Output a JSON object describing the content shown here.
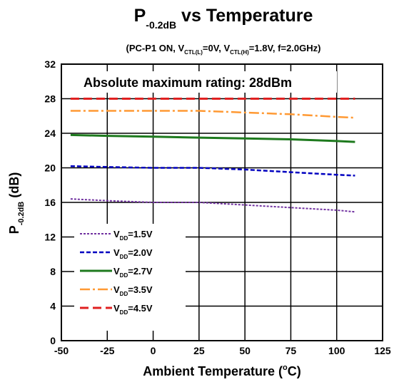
{
  "chart_data": {
    "type": "line",
    "title": {
      "main": "P",
      "sub": "-0.2dB",
      "rest": " vs Temperature"
    },
    "subtitle": {
      "p1": "(PC-P1 ON, V",
      "s1": "CTL(L)",
      "p2": "=0V, V",
      "s2": "CTL(H)",
      "p3": "=1.8V, f=2.0GHz)"
    },
    "annotation": "Absolute maximum rating: 28dBm",
    "xlabel": {
      "main": "Ambient Temperature  (",
      "sup": "o",
      "rest": "C)"
    },
    "ylabel": {
      "main": "P",
      "sub": "-0.2dB",
      "rest": " (dB)"
    },
    "xlim": [
      -50,
      125
    ],
    "ylim": [
      0,
      32
    ],
    "xticks": [
      "-50",
      "-25",
      "0",
      "25",
      "50",
      "75",
      "100",
      "125"
    ],
    "yticks": [
      "0",
      "4",
      "8",
      "12",
      "16",
      "20",
      "24",
      "28",
      "32"
    ],
    "grid": true,
    "legend_position": "bottom-left",
    "series": [
      {
        "name": "V",
        "sub": "DD",
        "suffix": "=1.5V",
        "color": "#7030A0",
        "dash": "3,2",
        "width": 2,
        "x": [
          -45,
          -25,
          0,
          25,
          50,
          75,
          100,
          110
        ],
        "y": [
          16.4,
          16.2,
          16.0,
          16.0,
          15.7,
          15.4,
          15.1,
          14.9
        ]
      },
      {
        "name": "V",
        "sub": "DD",
        "suffix": "=2.0V",
        "color": "#0000C0",
        "dash": "6,3",
        "width": 2.5,
        "x": [
          -45,
          -25,
          0,
          25,
          50,
          75,
          100,
          110
        ],
        "y": [
          20.2,
          20.1,
          20.0,
          20.0,
          19.8,
          19.5,
          19.2,
          19.1
        ]
      },
      {
        "name": "V",
        "sub": "DD",
        "suffix": "=2.7V",
        "color": "#1E7A1E",
        "dash": "",
        "width": 3,
        "x": [
          -45,
          -25,
          0,
          25,
          50,
          75,
          100,
          110
        ],
        "y": [
          23.8,
          23.7,
          23.6,
          23.5,
          23.4,
          23.3,
          23.1,
          23.0
        ]
      },
      {
        "name": "V",
        "sub": "DD",
        "suffix": "=3.5V",
        "color": "#FF9933",
        "dash": "14,4,3,4",
        "width": 2.5,
        "x": [
          -45,
          -25,
          0,
          25,
          50,
          75,
          100,
          110
        ],
        "y": [
          26.6,
          26.6,
          26.6,
          26.6,
          26.4,
          26.2,
          25.9,
          25.8
        ]
      },
      {
        "name": "V",
        "sub": "DD",
        "suffix": "=4.5V",
        "color": "#E02020",
        "dash": "12,6",
        "width": 3,
        "x": [
          -45,
          -25,
          0,
          25,
          50,
          75,
          100,
          110
        ],
        "y": [
          28.0,
          28.0,
          28.0,
          28.0,
          28.0,
          28.0,
          28.0,
          28.0
        ]
      }
    ]
  }
}
